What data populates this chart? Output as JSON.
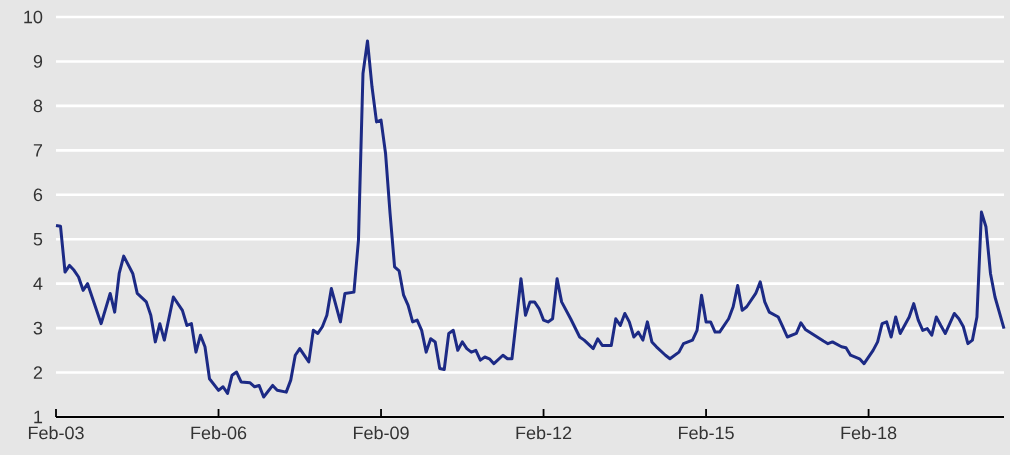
{
  "chart_data": {
    "type": "line",
    "color": "#1c2a85",
    "grid": "y",
    "x": [
      "2003-02",
      "2003-03",
      "2003-04",
      "2003-05",
      "2003-06",
      "2003-07",
      "2003-08",
      "2003-09",
      "2003-12",
      "2004-02",
      "2004-03",
      "2004-04",
      "2004-05",
      "2004-07",
      "2004-08",
      "2004-10",
      "2004-11",
      "2004-12",
      "2005-01",
      "2005-02",
      "2005-04",
      "2005-06",
      "2005-07",
      "2005-08",
      "2005-09",
      "2005-10",
      "2005-11",
      "2005-12",
      "2006-02",
      "2006-03",
      "2006-04",
      "2006-05",
      "2006-06",
      "2006-07",
      "2006-09",
      "2006-10",
      "2006-11",
      "2006-12",
      "2007-02",
      "2007-03",
      "2007-05",
      "2007-06",
      "2007-07",
      "2007-08",
      "2007-10",
      "2007-11",
      "2007-12",
      "2008-01",
      "2008-02",
      "2008-03",
      "2008-05",
      "2008-06",
      "2008-08",
      "2008-09",
      "2008-10",
      "2008-11",
      "2008-12",
      "2009-01",
      "2009-02",
      "2009-03",
      "2009-04",
      "2009-05",
      "2009-06",
      "2009-07",
      "2009-08",
      "2009-09",
      "2009-10",
      "2009-11",
      "2009-12",
      "2010-01",
      "2010-02",
      "2010-03",
      "2010-04",
      "2010-05",
      "2010-06",
      "2010-07",
      "2010-08",
      "2010-09",
      "2010-10",
      "2010-11",
      "2010-12",
      "2011-01",
      "2011-02",
      "2011-03",
      "2011-05",
      "2011-06",
      "2011-07",
      "2011-09",
      "2011-10",
      "2011-11",
      "2011-12",
      "2012-01",
      "2012-02",
      "2012-03",
      "2012-04",
      "2012-05",
      "2012-06",
      "2012-08",
      "2012-10",
      "2012-11",
      "2013-01",
      "2013-02",
      "2013-03",
      "2013-05",
      "2013-06",
      "2013-07",
      "2013-08",
      "2013-09",
      "2013-10",
      "2013-11",
      "2013-12",
      "2014-01",
      "2014-02",
      "2014-03",
      "2014-05",
      "2014-06",
      "2014-08",
      "2014-09",
      "2014-11",
      "2014-12",
      "2015-01",
      "2015-02",
      "2015-03",
      "2015-04",
      "2015-05",
      "2015-07",
      "2015-08",
      "2015-09",
      "2015-10",
      "2015-11",
      "2016-01",
      "2016-02",
      "2016-03",
      "2016-04",
      "2016-06",
      "2016-07",
      "2016-08",
      "2016-10",
      "2016-11",
      "2016-12",
      "2017-02",
      "2017-04",
      "2017-05",
      "2017-06",
      "2017-08",
      "2017-09",
      "2017-10",
      "2017-12",
      "2018-01",
      "2018-03",
      "2018-04",
      "2018-05",
      "2018-06",
      "2018-07",
      "2018-08",
      "2018-09",
      "2018-11",
      "2018-12",
      "2019-01",
      "2019-02",
      "2019-03",
      "2019-04",
      "2019-05",
      "2019-06",
      "2019-07",
      "2019-09",
      "2019-10",
      "2019-11",
      "2019-12",
      "2020-01",
      "2020-02",
      "2020-03",
      "2020-04",
      "2020-05",
      "2020-06",
      "2020-08"
    ],
    "values": [
      5.31,
      5.29,
      4.26,
      4.41,
      4.3,
      4.15,
      3.85,
      4.0,
      3.1,
      3.78,
      3.36,
      4.23,
      4.62,
      4.23,
      3.78,
      3.59,
      3.29,
      2.69,
      3.1,
      2.73,
      3.7,
      3.4,
      3.06,
      3.1,
      2.46,
      2.84,
      2.58,
      1.86,
      1.6,
      1.68,
      1.53,
      1.94,
      2.01,
      1.79,
      1.77,
      1.68,
      1.71,
      1.45,
      1.71,
      1.6,
      1.56,
      1.83,
      2.39,
      2.54,
      2.24,
      2.95,
      2.88,
      3.03,
      3.29,
      3.89,
      3.14,
      3.78,
      3.81,
      4.98,
      8.73,
      9.46,
      8.43,
      7.64,
      7.68,
      6.93,
      5.58,
      4.38,
      4.29,
      3.74,
      3.51,
      3.14,
      3.18,
      2.95,
      2.46,
      2.76,
      2.69,
      2.09,
      2.07,
      2.88,
      2.95,
      2.5,
      2.69,
      2.54,
      2.46,
      2.5,
      2.28,
      2.35,
      2.31,
      2.2,
      2.39,
      2.31,
      2.31,
      4.11,
      3.29,
      3.59,
      3.59,
      3.44,
      3.18,
      3.14,
      3.21,
      4.11,
      3.59,
      3.21,
      2.8,
      2.73,
      2.54,
      2.76,
      2.61,
      2.61,
      3.21,
      3.06,
      3.33,
      3.14,
      2.8,
      2.91,
      2.73,
      3.14,
      2.69,
      2.58,
      2.39,
      2.31,
      2.46,
      2.65,
      2.73,
      2.95,
      3.74,
      3.14,
      3.14,
      2.91,
      2.91,
      3.21,
      3.48,
      3.96,
      3.4,
      3.48,
      3.78,
      4.04,
      3.59,
      3.36,
      3.25,
      3.03,
      2.8,
      2.88,
      3.12,
      2.97,
      2.84,
      2.71,
      2.65,
      2.69,
      2.58,
      2.56,
      2.39,
      2.31,
      2.2,
      2.5,
      2.69,
      3.1,
      3.14,
      2.8,
      3.25,
      2.88,
      3.25,
      3.55,
      3.18,
      2.95,
      2.99,
      2.84,
      3.25,
      3.06,
      2.88,
      3.33,
      3.21,
      3.03,
      2.65,
      2.73,
      3.25,
      5.61,
      5.28,
      4.23,
      3.7,
      2.99
    ],
    "xlim": [
      "2003-02",
      "2020-08"
    ],
    "xticks": [
      {
        "value": "2003-02",
        "label": "Feb-03"
      },
      {
        "value": "2006-02",
        "label": "Feb-06"
      },
      {
        "value": "2009-02",
        "label": "Feb-09"
      },
      {
        "value": "2012-02",
        "label": "Feb-12"
      },
      {
        "value": "2015-02",
        "label": "Feb-15"
      },
      {
        "value": "2018-02",
        "label": "Feb-18"
      }
    ],
    "ylim": [
      1,
      10
    ],
    "yticks": [
      1,
      2,
      3,
      4,
      5,
      6,
      7,
      8,
      9,
      10
    ]
  }
}
